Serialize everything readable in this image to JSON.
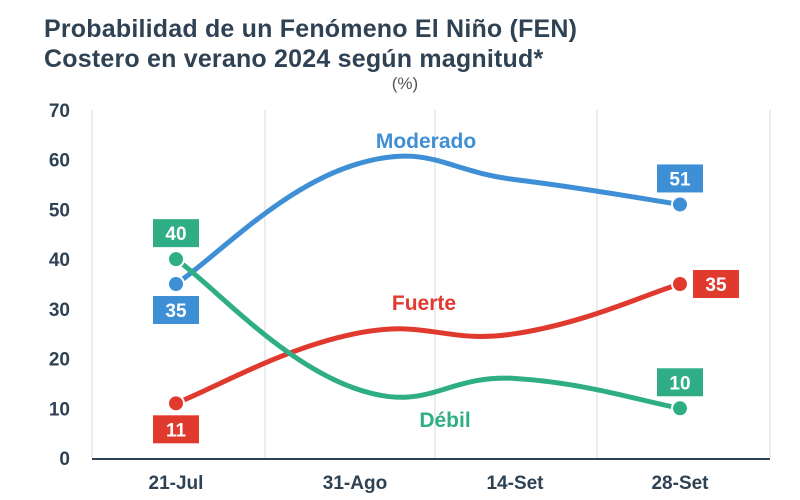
{
  "title_line1": "Probabilidad de un Fenómeno El Niño (FEN)",
  "title_line2": "Costero en verano 2024 según magnitud*",
  "unit": "(%)",
  "chart_data": {
    "type": "line",
    "title": "Probabilidad de un Fenómeno El Niño (FEN) Costero en verano 2024 según magnitud*",
    "ylabel": "(%)",
    "xlabel": "",
    "categories": [
      "21-Jul",
      "31-Ago",
      "14-Set",
      "28-Set"
    ],
    "ylim": [
      0,
      70
    ],
    "yticks": [
      0,
      10,
      20,
      30,
      40,
      50,
      60,
      70
    ],
    "grid": "vertical",
    "series": [
      {
        "name": "Moderado",
        "color": "#3e8fd6",
        "values": [
          35,
          59,
          56,
          51
        ],
        "markers": [
          0,
          3
        ],
        "labels": [
          "35",
          "51"
        ]
      },
      {
        "name": "Fuerte",
        "color": "#e03a2f",
        "values": [
          11,
          25,
          25,
          35
        ],
        "markers": [
          0,
          3
        ],
        "labels": [
          "11",
          "35"
        ]
      },
      {
        "name": "Débil",
        "color": "#2fae86",
        "values": [
          40,
          14,
          16,
          10
        ],
        "markers": [
          0,
          3
        ],
        "labels": [
          "40",
          "10"
        ]
      }
    ]
  }
}
